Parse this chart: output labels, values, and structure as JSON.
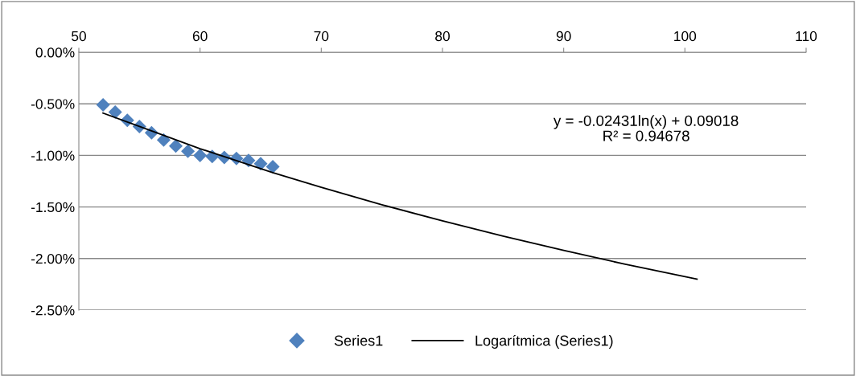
{
  "chart_data": {
    "type": "scatter",
    "series": [
      {
        "name": "Series1",
        "color": "#4f81bd",
        "marker": "diamond",
        "x": [
          52,
          53,
          54,
          55,
          56,
          57,
          58,
          59,
          60,
          61,
          62,
          63,
          64,
          65,
          66
        ],
        "values": [
          -0.51,
          -0.58,
          -0.66,
          -0.72,
          -0.78,
          -0.85,
          -0.91,
          -0.96,
          -1.0,
          -1.01,
          -1.02,
          -1.03,
          -1.05,
          -1.08,
          -1.11
        ]
      },
      {
        "name": "Logarítmica (Series1)",
        "type": "line",
        "color": "#000000",
        "marker": "none",
        "line_style": "solid",
        "x": [
          52,
          55,
          60,
          66,
          70,
          75,
          80,
          85,
          90,
          95,
          101
        ],
        "values": [
          -0.59,
          -0.72,
          -0.935,
          -1.167,
          -1.31,
          -1.478,
          -1.635,
          -1.782,
          -1.921,
          -2.053,
          -2.2
        ]
      }
    ],
    "xlim": [
      50,
      110
    ],
    "xticks": [
      50,
      60,
      70,
      80,
      90,
      100,
      110
    ],
    "ylim": [
      -2.5,
      0
    ],
    "yticks": [
      {
        "value": 0,
        "label": "0.00%"
      },
      {
        "value": -0.5,
        "label": "-0.50%"
      },
      {
        "value": -1.0,
        "label": "-1.00%"
      },
      {
        "value": -1.5,
        "label": "-1.50%"
      },
      {
        "value": -2.0,
        "label": "-2.00%"
      },
      {
        "value": -2.5,
        "label": "-2.50%"
      }
    ],
    "grid": "y",
    "legend": "bottom",
    "annotations": [
      "y = -0.02431ln(x) + 0.09018\nR² = 0.94678"
    ]
  }
}
